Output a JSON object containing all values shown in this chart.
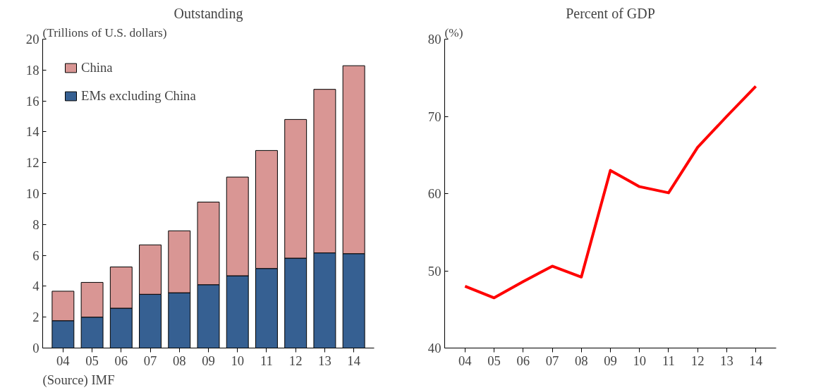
{
  "chart_data": [
    {
      "type": "bar",
      "title": "Outstanding",
      "ylabel": "(Trillions of U.S. dollars)",
      "categories": [
        "04",
        "05",
        "06",
        "07",
        "08",
        "09",
        "10",
        "11",
        "12",
        "13",
        "14"
      ],
      "stacked": true,
      "series": [
        {
          "name": "EMs excluding China",
          "color": "#366092",
          "values": [
            1.77,
            2.0,
            2.58,
            3.48,
            3.58,
            4.1,
            4.68,
            5.15,
            5.82,
            6.16,
            6.11
          ]
        },
        {
          "name": "China",
          "color": "#d99694",
          "values": [
            1.91,
            2.25,
            2.67,
            3.2,
            4.01,
            5.35,
            6.39,
            7.64,
            8.98,
            10.59,
            12.17
          ]
        }
      ],
      "ylim": [
        0,
        20
      ],
      "yticks": [
        0,
        2,
        4,
        6,
        8,
        10,
        12,
        14,
        16,
        18,
        20
      ],
      "grid": false,
      "legend": "top left",
      "annotations": [
        "(Source) IMF"
      ]
    },
    {
      "type": "line",
      "title": "Percent of GDP",
      "ylabel": "(%)",
      "categories": [
        "04",
        "05",
        "06",
        "07",
        "08",
        "09",
        "10",
        "11",
        "12",
        "13",
        "14"
      ],
      "series": [
        {
          "color": "#ff0000",
          "values": [
            48.0,
            46.5,
            48.6,
            50.6,
            49.2,
            63.0,
            60.9,
            60.1,
            66.0,
            70.0,
            73.9
          ]
        }
      ],
      "ylim": [
        40,
        80
      ],
      "yticks": [
        40,
        50,
        60,
        70,
        80
      ],
      "grid": false,
      "legend": false,
      "marker": "none"
    }
  ]
}
